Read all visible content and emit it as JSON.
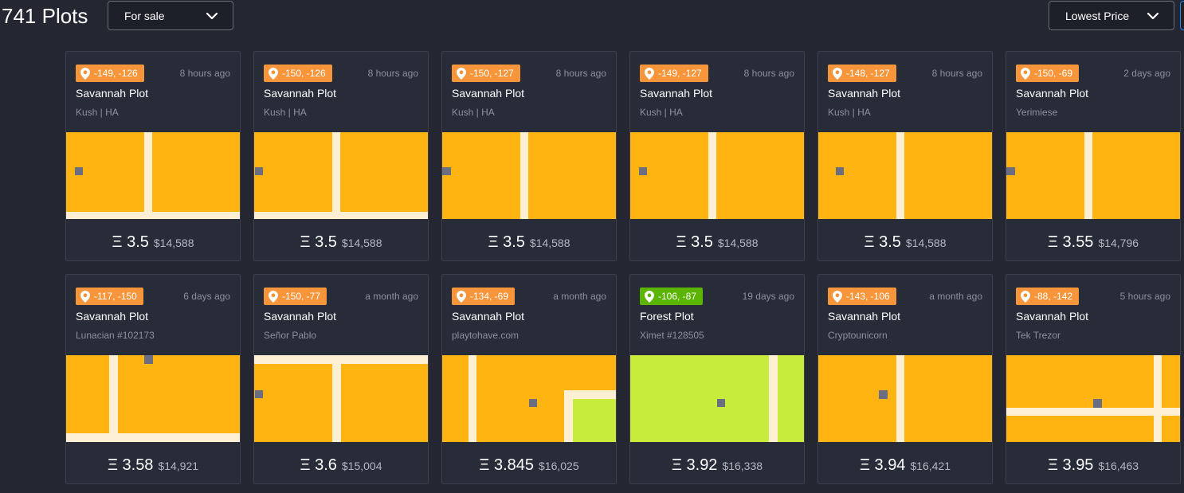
{
  "header": {
    "plot_count": "741 Plots",
    "filter": {
      "label": "For sale",
      "icon": "chevron-down-icon"
    },
    "sort": {
      "label": "Lowest Price",
      "icon": "chevron-down-icon"
    }
  },
  "colors": {
    "savannah_badge": "#f7953a",
    "forest_badge": "#5bb400",
    "savannah_fill": "#ffb411",
    "forest_fill": "#c8ec3c",
    "road": "#fcefd3",
    "marker": "#6b6d80"
  },
  "plots": [
    {
      "coords": "-149, -126",
      "time": "8 hours ago",
      "type": "Savannah Plot",
      "owner": "Kush | HA",
      "price_eth": "Ξ 3.5",
      "price_usd": "$14,588",
      "terrain": "savannah",
      "pin_icon": "map-pin-icon"
    },
    {
      "coords": "-150, -126",
      "time": "8 hours ago",
      "type": "Savannah Plot",
      "owner": "Kush | HA",
      "price_eth": "Ξ 3.5",
      "price_usd": "$14,588",
      "terrain": "savannah",
      "pin_icon": "map-pin-icon"
    },
    {
      "coords": "-150, -127",
      "time": "8 hours ago",
      "type": "Savannah Plot",
      "owner": "Kush | HA",
      "price_eth": "Ξ 3.5",
      "price_usd": "$14,588",
      "terrain": "savannah",
      "pin_icon": "map-pin-icon"
    },
    {
      "coords": "-149, -127",
      "time": "8 hours ago",
      "type": "Savannah Plot",
      "owner": "Kush | HA",
      "price_eth": "Ξ 3.5",
      "price_usd": "$14,588",
      "terrain": "savannah",
      "pin_icon": "map-pin-icon"
    },
    {
      "coords": "-148, -127",
      "time": "8 hours ago",
      "type": "Savannah Plot",
      "owner": "Kush | HA",
      "price_eth": "Ξ 3.5",
      "price_usd": "$14,588",
      "terrain": "savannah",
      "pin_icon": "map-pin-icon"
    },
    {
      "coords": "-150, -69",
      "time": "2 days ago",
      "type": "Savannah Plot",
      "owner": "Yerimiese",
      "price_eth": "Ξ 3.55",
      "price_usd": "$14,796",
      "terrain": "savannah",
      "pin_icon": "map-pin-icon"
    },
    {
      "coords": "-117, -150",
      "time": "6 days ago",
      "type": "Savannah Plot",
      "owner": "Lunacian #102173",
      "price_eth": "Ξ 3.58",
      "price_usd": "$14,921",
      "terrain": "savannah",
      "pin_icon": "map-pin-icon"
    },
    {
      "coords": "-150, -77",
      "time": "a month ago",
      "type": "Savannah Plot",
      "owner": "Señor Pablo",
      "price_eth": "Ξ 3.6",
      "price_usd": "$15,004",
      "terrain": "savannah",
      "pin_icon": "map-pin-icon"
    },
    {
      "coords": "-134, -69",
      "time": "a month ago",
      "type": "Savannah Plot",
      "owner": "playtohave.com",
      "price_eth": "Ξ 3.845",
      "price_usd": "$16,025",
      "terrain": "savannah",
      "pin_icon": "map-pin-icon"
    },
    {
      "coords": "-106, -87",
      "time": "19 days ago",
      "type": "Forest Plot",
      "owner": "Ximet #128505",
      "price_eth": "Ξ 3.92",
      "price_usd": "$16,338",
      "terrain": "forest",
      "pin_icon": "map-pin-icon"
    },
    {
      "coords": "-143, -106",
      "time": "a month ago",
      "type": "Savannah Plot",
      "owner": "Cryptounicorn",
      "price_eth": "Ξ 3.94",
      "price_usd": "$16,421",
      "terrain": "savannah",
      "pin_icon": "map-pin-icon"
    },
    {
      "coords": "-88, -142",
      "time": "5 hours ago",
      "type": "Savannah Plot",
      "owner": "Tek Trezor",
      "price_eth": "Ξ 3.95",
      "price_usd": "$16,463",
      "terrain": "savannah",
      "pin_icon": "map-pin-icon"
    }
  ]
}
